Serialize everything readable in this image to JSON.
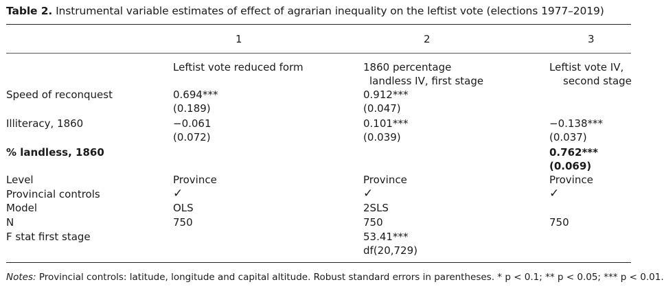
{
  "caption": {
    "label": "Table 2.",
    "text": "Instrumental variable estimates of effect of agrarian inequality on the leftist vote (elections 1977–2019)"
  },
  "columns": {
    "numbers": [
      "1",
      "2",
      "3"
    ],
    "headers": {
      "c1": "Leftist vote reduced form",
      "c2_line1": "1860 percentage",
      "c2_line2": "landless IV, first stage",
      "c3_line1": "Leftist vote IV,",
      "c3_line2": "second stage"
    }
  },
  "rows": {
    "speed": {
      "label": "Speed of reconquest",
      "c1": "0.694***",
      "c1_se": "(0.189)",
      "c2": "0.912***",
      "c2_se": "(0.047)"
    },
    "illiteracy": {
      "label": "Illiteracy, 1860",
      "c1": "−0.061",
      "c1_se": "(0.072)",
      "c2": "0.101***",
      "c2_se": "(0.039)",
      "c3": "−0.138***",
      "c3_se": "(0.037)"
    },
    "landless": {
      "label": "% landless, 1860",
      "c3": "0.762***",
      "c3_se": "(0.069)"
    },
    "level": {
      "label": "Level",
      "c1": "Province",
      "c2": "Province",
      "c3": "Province"
    },
    "controls": {
      "label": "Provincial controls",
      "c1": "✓",
      "c2": "✓",
      "c3": "✓"
    },
    "model": {
      "label": "Model",
      "c1": "OLS",
      "c2": "2SLS"
    },
    "n": {
      "label": "N",
      "c1": "750",
      "c2": "750",
      "c3": "750"
    },
    "fstat": {
      "label": "F stat first stage",
      "c2": "53.41***",
      "c2_df": "df(20,729)"
    }
  },
  "notes": {
    "prefix": "Notes:",
    "text": " Provincial controls: latitude, longitude and capital altitude. Robust standard errors in parentheses. * p < 0.1; ** p < 0.05; *** p < 0.01."
  }
}
